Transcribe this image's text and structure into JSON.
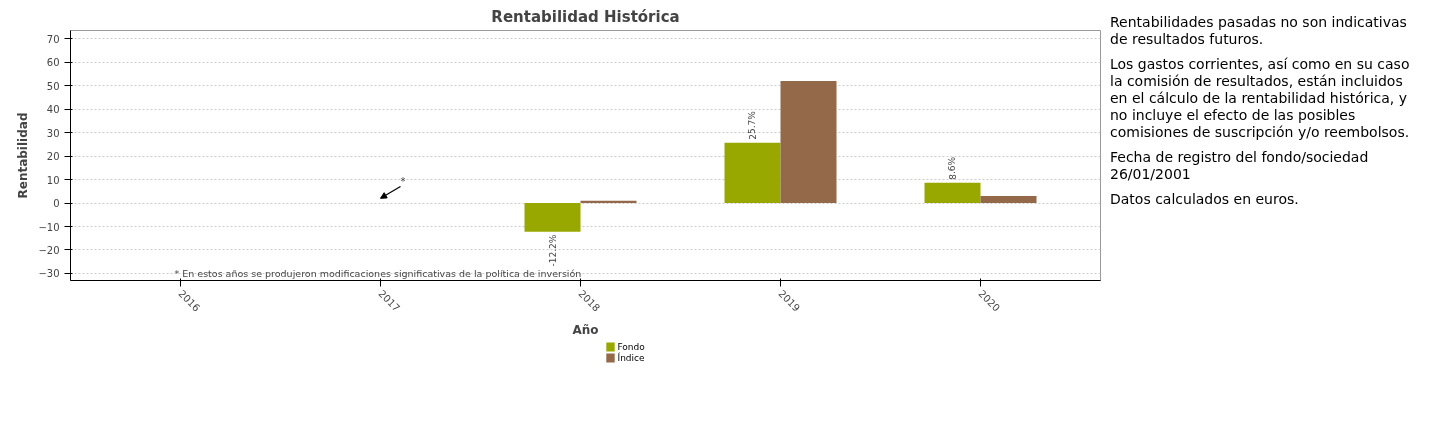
{
  "chart_data": {
    "type": "bar",
    "title": "Rentabilidad Histórica",
    "xlabel": "Año",
    "ylabel": "Rentabilidad",
    "categories": [
      "2016",
      "2017",
      "2018",
      "2019",
      "2020"
    ],
    "series": [
      {
        "name": "Fondo",
        "color": "#98a800",
        "values": [
          null,
          null,
          -12.2,
          25.7,
          8.6
        ],
        "value_labels": [
          null,
          null,
          "-12.2%",
          "25.7%",
          "8.6%"
        ]
      },
      {
        "name": "Índice",
        "color": "#94694a",
        "values": [
          null,
          null,
          1,
          52,
          3
        ]
      }
    ],
    "ylim": [
      -33,
      73.5
    ],
    "yticks": [
      -30,
      -20,
      -10,
      0,
      10,
      20,
      30,
      40,
      50,
      60,
      70
    ],
    "grid": "y",
    "legend": "bottom",
    "annotations": [
      "*",
      "* En estos años se produjeron modificaciones significativas de la política de inversión",
      "Rentabilidades pasadas no son indicativas de resultados futuros.",
      "Los gastos corrientes, así como en su caso la comisión de resultados, están incluidos en el cálculo de la rentabilidad histórica, y no incluye el efecto de las posibles comisiones de suscripción y/o reembolsos.",
      "Fecha de registro del fondo/sociedad 26/01/2001",
      "Datos calculados en euros."
    ]
  }
}
